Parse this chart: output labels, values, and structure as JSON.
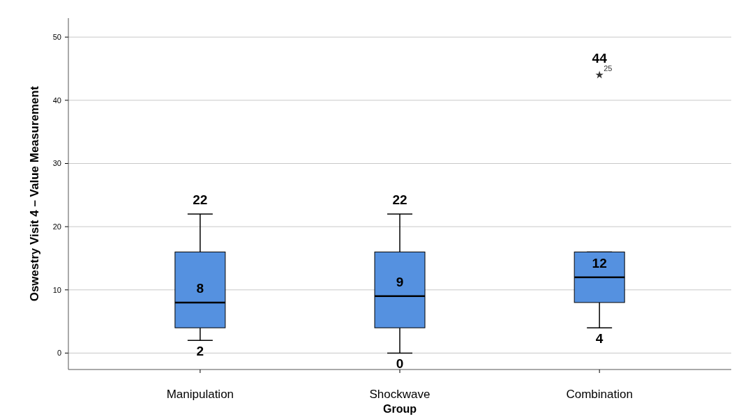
{
  "chart_data": {
    "type": "box",
    "xlabel": "Group",
    "ylabel": "Oswestry Visit 4 – Value Measurement",
    "categories": [
      "Manipulation",
      "Shockwave",
      "Combination"
    ],
    "boxes": [
      {
        "low": 2,
        "q1": 4,
        "median": 8,
        "q3": 16,
        "high": 22
      },
      {
        "low": 0,
        "q1": 4,
        "median": 9,
        "q3": 16,
        "high": 22
      },
      {
        "low": 4,
        "q1": 8,
        "median": 12,
        "q3": 16,
        "high": 16,
        "outliers": [
          44
        ]
      }
    ],
    "color": "#5591e0",
    "marker": "star",
    "ylim": [
      -2.6,
      53
    ],
    "yticks": [
      0,
      10,
      20,
      30,
      40,
      50
    ],
    "grid": "y",
    "annotations": [
      {
        "text": "22",
        "x": "Manipulation",
        "y": 22
      },
      {
        "text": "8",
        "x": "Manipulation",
        "y": 8
      },
      {
        "text": "2",
        "x": "Manipulation",
        "y": 2
      },
      {
        "text": "22",
        "x": "Shockwave",
        "y": 22
      },
      {
        "text": "9",
        "x": "Shockwave",
        "y": 9
      },
      {
        "text": "0",
        "x": "Shockwave",
        "y": 0
      },
      "44",
      "25",
      {
        "text": "12",
        "x": "Combination",
        "y": 12
      },
      {
        "text": "4",
        "x": "Combination",
        "y": 4
      }
    ]
  }
}
